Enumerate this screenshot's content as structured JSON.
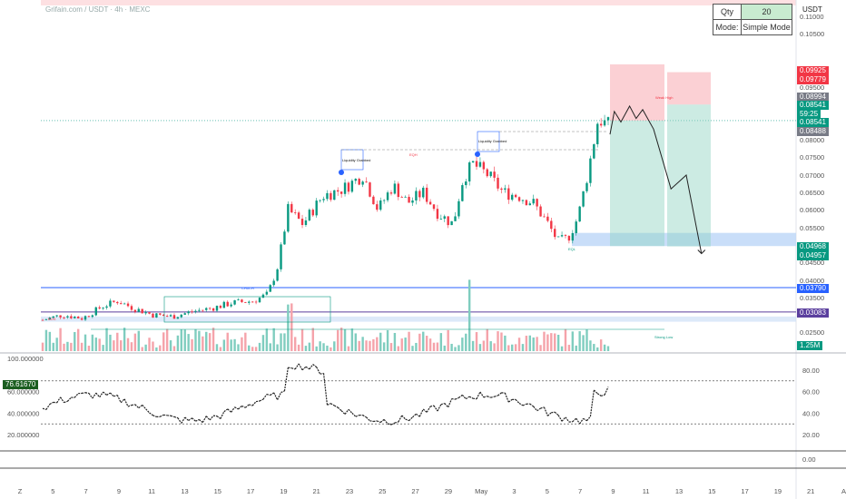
{
  "header": {
    "symbol_line": "Grifain.com / USDT · 4h · MEXC",
    "currency_label": "USDT"
  },
  "order_panel": {
    "qty_label": "Qty",
    "qty_value": "20",
    "mode_label": "Mode:",
    "mode_value": "Simple Mode"
  },
  "price_tags": [
    {
      "text": "0.09925",
      "color": "#f23645"
    },
    {
      "text": "0.09779",
      "color": "#f23645"
    },
    {
      "text": "0.08994",
      "color": "#787b86"
    },
    {
      "text": "0.08541",
      "color": "#089981"
    },
    {
      "text": "59:25",
      "color": "#089981"
    },
    {
      "text": "0.08541",
      "color": "#089981"
    },
    {
      "text": "0.08488",
      "color": "#787b86"
    },
    {
      "text": "0.04968",
      "color": "#089981"
    },
    {
      "text": "0.04957",
      "color": "#089981"
    },
    {
      "text": "0.03790",
      "color": "#2962ff"
    },
    {
      "text": "0.03083",
      "color": "#5b3f9e"
    },
    {
      "text": "1.25M",
      "color": "#089981"
    }
  ],
  "rsi_tag": {
    "text": "76.61670",
    "color": "#1b5e20"
  },
  "annotations": {
    "liquidity_1": "Liquidity Grabbed",
    "liquidity_2": "Liquidity Grabbed",
    "choch": "CHoCH",
    "strong_low": "Strong Low",
    "weak_high": "Weak High",
    "eqh": "EQH",
    "eql": "EQL",
    "bos": "BOS"
  },
  "chart_data": {
    "type": "candlestick",
    "price_axis": {
      "ticks": [
        "0.11000",
        "0.10500",
        "0.09500",
        "0.09000",
        "0.08000",
        "0.07500",
        "0.07000",
        "0.06500",
        "0.06000",
        "0.05500",
        "0.04500",
        "0.04000",
        "0.03500",
        "0.02500"
      ],
      "tick_values": [
        0.11,
        0.105,
        0.095,
        0.09,
        0.08,
        0.075,
        0.07,
        0.065,
        0.06,
        0.055,
        0.045,
        0.04,
        0.035,
        0.025
      ],
      "range": [
        0.022,
        0.115
      ]
    },
    "rsi_axis": {
      "ticks": [
        "80.00",
        "60.00",
        "40.00",
        "20.00",
        "0.00"
      ],
      "tick_values": [
        80,
        60,
        40,
        20,
        0
      ],
      "left_labels": [
        "100.000000",
        "60.000000",
        "40.000000",
        "20.000000"
      ],
      "left_values": [
        100,
        60,
        40,
        20
      ],
      "levels": [
        70,
        30
      ],
      "range": [
        0,
        100
      ]
    },
    "x_labels": [
      "Z",
      "5",
      "7",
      "9",
      "11",
      "13",
      "15",
      "17",
      "19",
      "21",
      "23",
      "25",
      "27",
      "29",
      "May",
      "3",
      "5",
      "7",
      "9",
      "11",
      "13",
      "15",
      "17",
      "19",
      "21",
      "A"
    ],
    "price_levels": [
      {
        "name": "CHoCH",
        "value": 0.0379
      },
      {
        "name": "level",
        "value": 0.03083
      },
      {
        "name": "current",
        "value": 0.08541
      }
    ],
    "zones": [
      {
        "label": "demand",
        "from": 0.04968,
        "to": 0.0535
      },
      {
        "label": "lower",
        "from": 0.028,
        "to": 0.0295
      }
    ],
    "positions": [
      {
        "side": "short",
        "entry": 0.08541,
        "stop": 0.09925,
        "target": 0.04968
      },
      {
        "side": "short",
        "entry": 0.08994,
        "stop": 0.09779,
        "target": 0.04957
      }
    ],
    "projection": [
      {
        "t": 0,
        "p": 0.0815
      },
      {
        "t": 4,
        "p": 0.088
      },
      {
        "t": 10,
        "p": 0.085
      },
      {
        "t": 18,
        "p": 0.0895
      },
      {
        "t": 24,
        "p": 0.086
      },
      {
        "t": 30,
        "p": 0.0885
      },
      {
        "t": 40,
        "p": 0.083
      },
      {
        "t": 56,
        "p": 0.066
      },
      {
        "t": 70,
        "p": 0.07
      },
      {
        "t": 84,
        "p": 0.0475
      }
    ],
    "volume_last": "1.25M",
    "rsi_last": 76.6167
  }
}
